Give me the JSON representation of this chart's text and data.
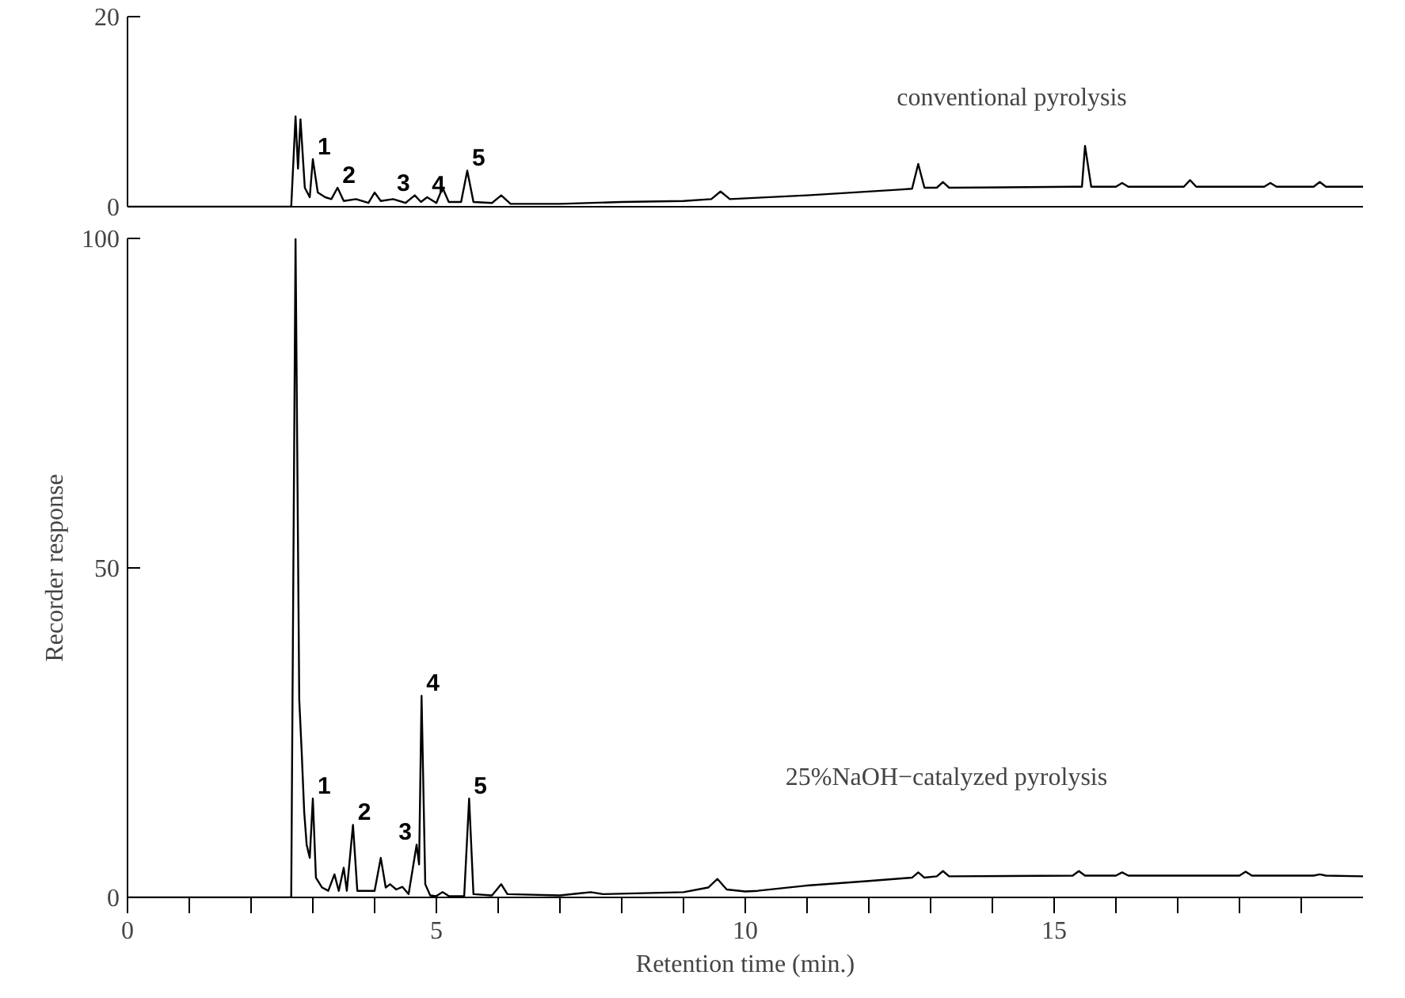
{
  "chart_data": [
    {
      "type": "line",
      "tick_labels": "y",
      "xlim": [
        0,
        20
      ],
      "ylim": [
        0,
        20
      ],
      "yticks": [
        0,
        20
      ],
      "grid": false,
      "marker": "none",
      "line_style": "solid",
      "annotations": [
        "conventional pyrolysis",
        {
          "text": "1",
          "x": 3.0,
          "y": 5
        },
        {
          "text": "2",
          "x": 3.4,
          "y": 2
        },
        {
          "text": "3",
          "x": 4.65,
          "y": 1.2
        },
        {
          "text": "4",
          "x": 4.85,
          "y": 1.0
        },
        {
          "text": "5",
          "x": 5.5,
          "y": 3.8
        }
      ],
      "series": [
        {
          "color": "#000000",
          "x": [
            0,
            1.5,
            2.65,
            2.72,
            2.76,
            2.8,
            2.87,
            2.95,
            3.0,
            3.08,
            3.2,
            3.3,
            3.4,
            3.5,
            3.7,
            3.9,
            4.0,
            4.1,
            4.3,
            4.5,
            4.65,
            4.75,
            4.85,
            5.0,
            5.1,
            5.2,
            5.4,
            5.5,
            5.6,
            5.9,
            6.05,
            6.2,
            7,
            8,
            9,
            9.45,
            9.6,
            9.75,
            11,
            12.5,
            12.7,
            12.8,
            12.9,
            13.1,
            13.2,
            13.3,
            15.3,
            15.45,
            15.5,
            15.6,
            16,
            16.1,
            16.2,
            17.1,
            17.2,
            17.3,
            18.4,
            18.5,
            18.6,
            19.2,
            19.3,
            19.4,
            20
          ],
          "values": [
            0,
            0,
            0,
            9.5,
            4,
            9.2,
            2,
            1,
            5,
            1.5,
            1,
            0.8,
            2,
            0.6,
            0.8,
            0.4,
            1.5,
            0.6,
            0.8,
            0.4,
            1.2,
            0.5,
            1.0,
            0.4,
            2.0,
            0.5,
            0.5,
            3.8,
            0.5,
            0.4,
            1.2,
            0.3,
            0.3,
            0.5,
            0.6,
            0.8,
            1.6,
            0.8,
            1.2,
            1.8,
            1.9,
            4.5,
            2.0,
            2.0,
            2.6,
            2.0,
            2.1,
            2.1,
            6.4,
            2.1,
            2.1,
            2.5,
            2.1,
            2.1,
            2.8,
            2.1,
            2.1,
            2.5,
            2.1,
            2.1,
            2.6,
            2.1,
            2.1
          ]
        }
      ]
    },
    {
      "type": "line",
      "xlabel": "Retention time (min.)",
      "ylabel": "Recorder response",
      "xlim": [
        0,
        20
      ],
      "ylim": [
        0,
        100
      ],
      "yticks": [
        0,
        50,
        100
      ],
      "xticks": [
        0,
        {
          "value": 1,
          "label": null
        },
        {
          "value": 2,
          "label": null
        },
        {
          "value": 3,
          "label": null
        },
        {
          "value": 4,
          "label": null
        },
        5,
        {
          "value": 6,
          "label": null
        },
        {
          "value": 7,
          "label": null
        },
        {
          "value": 8,
          "label": null
        },
        {
          "value": 9,
          "label": null
        },
        10,
        {
          "value": 11,
          "label": null
        },
        {
          "value": 12,
          "label": null
        },
        {
          "value": 13,
          "label": null
        },
        {
          "value": 14,
          "label": null
        },
        15,
        {
          "value": 16,
          "label": null
        },
        {
          "value": 17,
          "label": null
        },
        {
          "value": 18,
          "label": null
        },
        {
          "value": 19,
          "label": null
        }
      ],
      "grid": false,
      "marker": "none",
      "line_style": "solid",
      "annotations": [
        "25%NaOH−catalyzed pyrolysis",
        {
          "text": "1",
          "x": 3.0,
          "y": 15
        },
        {
          "text": "2",
          "x": 3.65,
          "y": 11
        },
        {
          "text": "3",
          "x": 4.68,
          "y": 8
        },
        {
          "text": "4",
          "x": 4.76,
          "y": 30.6
        },
        {
          "text": "5",
          "x": 5.53,
          "y": 15
        }
      ],
      "series": [
        {
          "color": "#000000",
          "x": [
            0,
            2.65,
            2.72,
            2.78,
            2.82,
            2.86,
            2.9,
            2.95,
            3.0,
            3.05,
            3.15,
            3.25,
            3.35,
            3.42,
            3.5,
            3.55,
            3.65,
            3.72,
            3.85,
            4.0,
            4.1,
            4.18,
            4.25,
            4.35,
            4.45,
            4.55,
            4.68,
            4.72,
            4.76,
            4.82,
            4.9,
            5.0,
            5.1,
            5.2,
            5.45,
            5.53,
            5.6,
            5.9,
            6.05,
            6.15,
            7,
            7.3,
            7.5,
            7.7,
            9,
            9.4,
            9.55,
            9.7,
            10,
            10.2,
            11,
            12,
            12.7,
            12.8,
            12.9,
            13.1,
            13.2,
            13.3,
            15.3,
            15.4,
            15.5,
            16.0,
            16.1,
            16.2,
            18.0,
            18.1,
            18.2,
            19.2,
            19.3,
            19.4,
            20
          ],
          "values": [
            0,
            0,
            100,
            30,
            22,
            13,
            8,
            6,
            15,
            3,
            1.5,
            1,
            3.5,
            1,
            4.5,
            1,
            11,
            1,
            1,
            1,
            6,
            1.5,
            2,
            1.2,
            1.6,
            0.5,
            8,
            5,
            30.6,
            2,
            0.3,
            0.2,
            0.8,
            0.2,
            0.2,
            15,
            0.5,
            0.3,
            2,
            0.5,
            0.3,
            0.6,
            0.8,
            0.5,
            0.8,
            1.5,
            2.8,
            1.2,
            0.9,
            1.0,
            1.8,
            2.5,
            3.0,
            3.8,
            3.0,
            3.2,
            4.0,
            3.2,
            3.3,
            4.0,
            3.3,
            3.3,
            3.8,
            3.3,
            3.3,
            3.9,
            3.3,
            3.3,
            3.5,
            3.3,
            3.2
          ]
        }
      ]
    }
  ]
}
